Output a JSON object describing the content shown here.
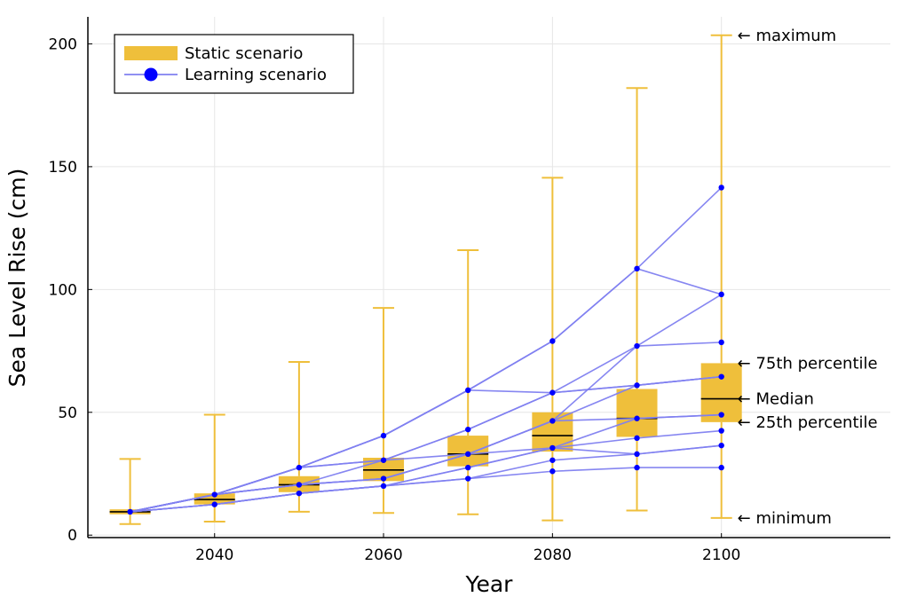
{
  "chart_data": {
    "type": "box",
    "xlabel": "Year",
    "ylabel": "Sea Level Rise (cm)",
    "xlim": [
      2025,
      2120
    ],
    "ylim": [
      -1,
      211
    ],
    "x_ticks": [
      2040,
      2060,
      2080,
      2100
    ],
    "y_ticks": [
      0,
      50,
      100,
      150,
      200
    ],
    "grid": true,
    "legend_position": "top-left",
    "colors": {
      "static": "#efbf3b",
      "learning_line": "#8080f0",
      "learning_marker": "#0000ff",
      "median": "#000000"
    },
    "legend": [
      {
        "key": "static",
        "label": "Static scenario"
      },
      {
        "key": "learning",
        "label": "Learning scenario"
      }
    ],
    "static_scenario": [
      {
        "year": 2030,
        "min": 4.5,
        "q1": 8.5,
        "median": 9.5,
        "q3": 10.5,
        "max": 31
      },
      {
        "year": 2040,
        "min": 5.5,
        "q1": 12.5,
        "median": 14.5,
        "q3": 17,
        "max": 49
      },
      {
        "year": 2050,
        "min": 9.5,
        "q1": 17.5,
        "median": 20.5,
        "q3": 24,
        "max": 70.5
      },
      {
        "year": 2060,
        "min": 9,
        "q1": 22,
        "median": 26.5,
        "q3": 31.5,
        "max": 92.5
      },
      {
        "year": 2070,
        "min": 8.5,
        "q1": 28,
        "median": 33,
        "q3": 40.5,
        "max": 116
      },
      {
        "year": 2080,
        "min": 6,
        "q1": 34,
        "median": 40.5,
        "q3": 50,
        "max": 145.5
      },
      {
        "year": 2090,
        "min": 10,
        "q1": 40,
        "median": 47.5,
        "q3": 59.5,
        "max": 182
      },
      {
        "year": 2100,
        "min": 7,
        "q1": 46,
        "median": 55.5,
        "q3": 70,
        "max": 203.5
      }
    ],
    "learning_x": [
      2030,
      2040,
      2050,
      2060,
      2070,
      2080,
      2090,
      2100
    ],
    "learning_paths": [
      [
        9.5,
        12.5,
        17,
        20,
        23,
        26,
        27.5,
        27.5
      ],
      [
        9.5,
        12.5,
        17,
        20,
        23,
        30.5,
        33,
        36.5
      ],
      [
        9.5,
        12.5,
        17,
        20,
        27.5,
        35.5,
        39.5,
        42.5
      ],
      [
        9.5,
        12.5,
        17,
        20,
        27.5,
        35.5,
        47.5,
        49
      ],
      [
        9.5,
        16.5,
        20.5,
        23,
        33,
        35.5,
        33,
        36.5
      ],
      [
        9.5,
        16.5,
        20.5,
        23,
        33,
        46.5,
        47.5,
        49
      ],
      [
        9.5,
        16.5,
        20.5,
        23,
        33,
        46.5,
        61,
        64.5
      ],
      [
        9.5,
        16.5,
        20.5,
        30.5,
        33,
        46.5,
        77,
        78.5
      ],
      [
        9.5,
        16.5,
        27.5,
        30.5,
        43,
        58,
        61,
        64.5
      ],
      [
        9.5,
        16.5,
        27.5,
        30.5,
        43,
        58,
        77,
        98
      ],
      [
        9.5,
        16.5,
        27.5,
        40.5,
        59,
        58,
        61,
        64.5
      ],
      [
        9.5,
        16.5,
        27.5,
        40.5,
        59,
        79,
        108.5,
        98
      ],
      [
        9.5,
        16.5,
        27.5,
        40.5,
        59,
        79,
        108.5,
        141.5
      ]
    ],
    "annotations": [
      {
        "text": "← maximum",
        "year": 2100,
        "value": 203.5
      },
      {
        "text": "← 75th percentile",
        "year": 2100,
        "value": 70
      },
      {
        "text": "← Median",
        "year": 2100,
        "value": 55.5
      },
      {
        "text": "← 25th percentile",
        "year": 2100,
        "value": 46
      },
      {
        "text": "← minimum",
        "year": 2100,
        "value": 7
      }
    ]
  }
}
